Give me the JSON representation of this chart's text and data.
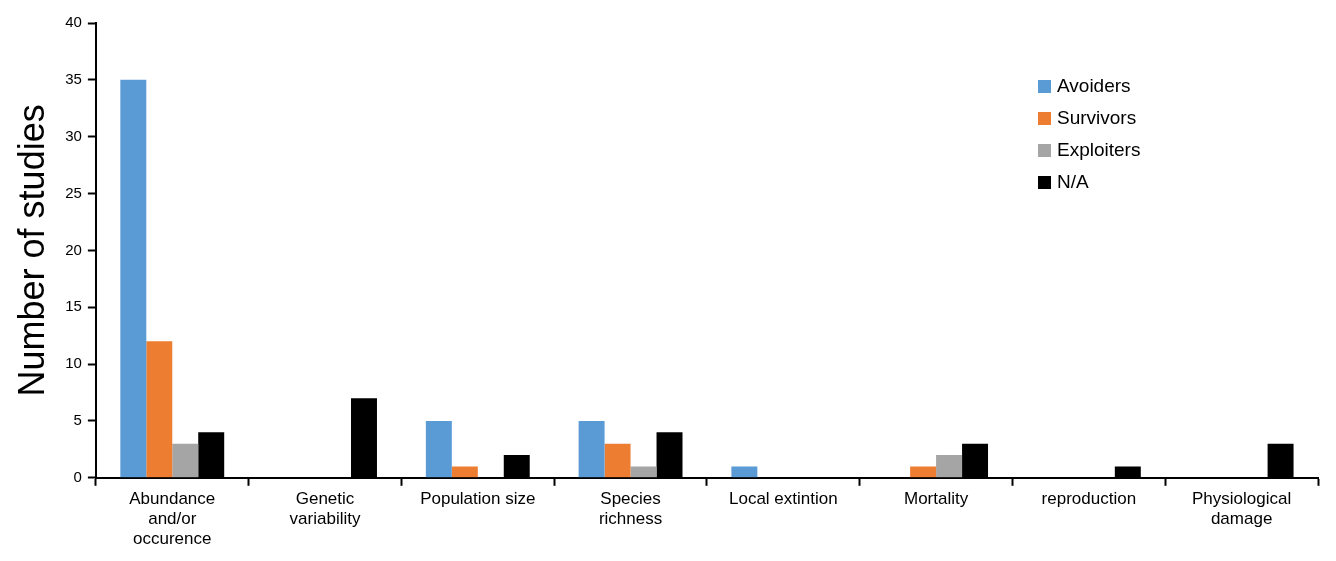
{
  "chart_data": {
    "type": "bar",
    "ylabel": "Number of studies",
    "categories": [
      "Abundance and/or occurence",
      "Genetic variability",
      "Population size",
      "Species richness",
      "Local extintion",
      "Mortality",
      "reproduction",
      "Physiological damage"
    ],
    "series": [
      {
        "name": "Avoiders",
        "color": "#5b9bd5",
        "values": [
          35,
          0,
          5,
          5,
          1,
          0,
          0,
          0
        ]
      },
      {
        "name": "Survivors",
        "color": "#ed7d31",
        "values": [
          12,
          0,
          1,
          3,
          0,
          1,
          0,
          0
        ]
      },
      {
        "name": "Exploiters",
        "color": "#a5a5a5",
        "values": [
          3,
          0,
          0,
          1,
          0,
          2,
          0,
          0
        ]
      },
      {
        "name": "N/A",
        "color": "#000000",
        "values": [
          4,
          7,
          2,
          4,
          0,
          3,
          1,
          3
        ]
      }
    ],
    "ylim": [
      0,
      40
    ],
    "yticks": [
      0,
      5,
      10,
      15,
      20,
      25,
      30,
      35,
      40
    ],
    "grid": false,
    "legend": "top right"
  }
}
